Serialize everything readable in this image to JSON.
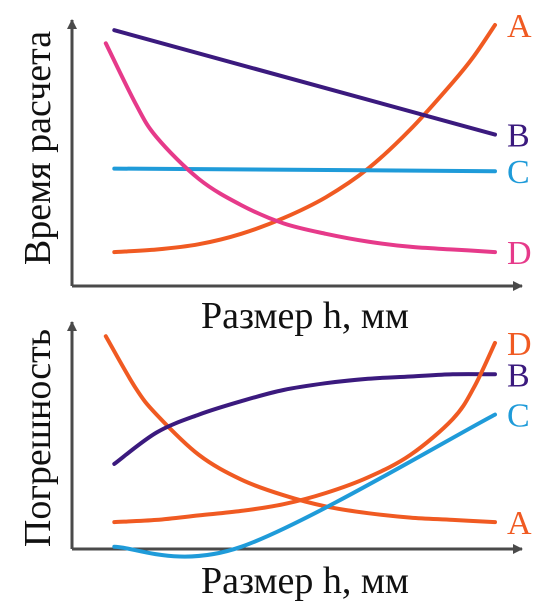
{
  "colors": {
    "axis": "#4a4a4a",
    "text": "#111111",
    "orange": "#f05a22",
    "purple": "#3b1a7e",
    "blue": "#1f9bd9",
    "pink": "#e63a8a"
  },
  "chart_data": [
    {
      "type": "line",
      "title": "",
      "xlabel": "Размер h, мм",
      "ylabel": "Время расчета",
      "xlim": [
        0,
        1
      ],
      "ylim": [
        0,
        1
      ],
      "grid": false,
      "legend": "right-edge labels",
      "series": [
        {
          "name": "A",
          "color": "#f05a22",
          "x": [
            0.1,
            0.2,
            0.3,
            0.4,
            0.5,
            0.6,
            0.7,
            0.8,
            0.9,
            0.95,
            1.0
          ],
          "y": [
            0.13,
            0.14,
            0.16,
            0.2,
            0.26,
            0.34,
            0.45,
            0.6,
            0.78,
            0.88,
            1.0
          ]
        },
        {
          "name": "B",
          "color": "#3b1a7e",
          "x": [
            0.1,
            1.0
          ],
          "y": [
            0.98,
            0.58
          ]
        },
        {
          "name": "C",
          "color": "#1f9bd9",
          "x": [
            0.1,
            1.0
          ],
          "y": [
            0.45,
            0.44
          ]
        },
        {
          "name": "D",
          "color": "#e63a8a",
          "x": [
            0.08,
            0.15,
            0.2,
            0.3,
            0.4,
            0.5,
            0.6,
            0.7,
            0.8,
            0.9,
            1.0
          ],
          "y": [
            0.93,
            0.7,
            0.57,
            0.41,
            0.31,
            0.24,
            0.2,
            0.17,
            0.15,
            0.14,
            0.13
          ]
        }
      ]
    },
    {
      "type": "line",
      "title": "",
      "xlabel": "Размер h, мм",
      "ylabel": "Погрешность",
      "xlim": [
        0,
        1
      ],
      "ylim": [
        0,
        1
      ],
      "grid": false,
      "legend": "right-edge labels",
      "series": [
        {
          "name": "A",
          "color": "#f05a22",
          "x": [
            0.08,
            0.15,
            0.2,
            0.3,
            0.4,
            0.5,
            0.6,
            0.7,
            0.8,
            0.9,
            1.0
          ],
          "y": [
            0.95,
            0.72,
            0.6,
            0.42,
            0.31,
            0.24,
            0.19,
            0.16,
            0.14,
            0.13,
            0.12
          ]
        },
        {
          "name": "B",
          "color": "#3b1a7e",
          "x": [
            0.1,
            0.2,
            0.3,
            0.4,
            0.5,
            0.6,
            0.7,
            0.8,
            0.9,
            1.0
          ],
          "y": [
            0.38,
            0.52,
            0.6,
            0.66,
            0.71,
            0.74,
            0.76,
            0.77,
            0.78,
            0.78
          ]
        },
        {
          "name": "C",
          "color": "#1f9bd9",
          "x": [
            0.1,
            0.4,
            1.0
          ],
          "y": [
            0.01,
            0.01,
            0.6
          ]
        },
        {
          "name": "D",
          "color": "#f05a22",
          "x": [
            0.1,
            0.2,
            0.3,
            0.4,
            0.5,
            0.6,
            0.7,
            0.8,
            0.9,
            0.95,
            1.0
          ],
          "y": [
            0.12,
            0.13,
            0.15,
            0.17,
            0.2,
            0.25,
            0.32,
            0.42,
            0.58,
            0.72,
            0.92
          ]
        }
      ]
    }
  ]
}
